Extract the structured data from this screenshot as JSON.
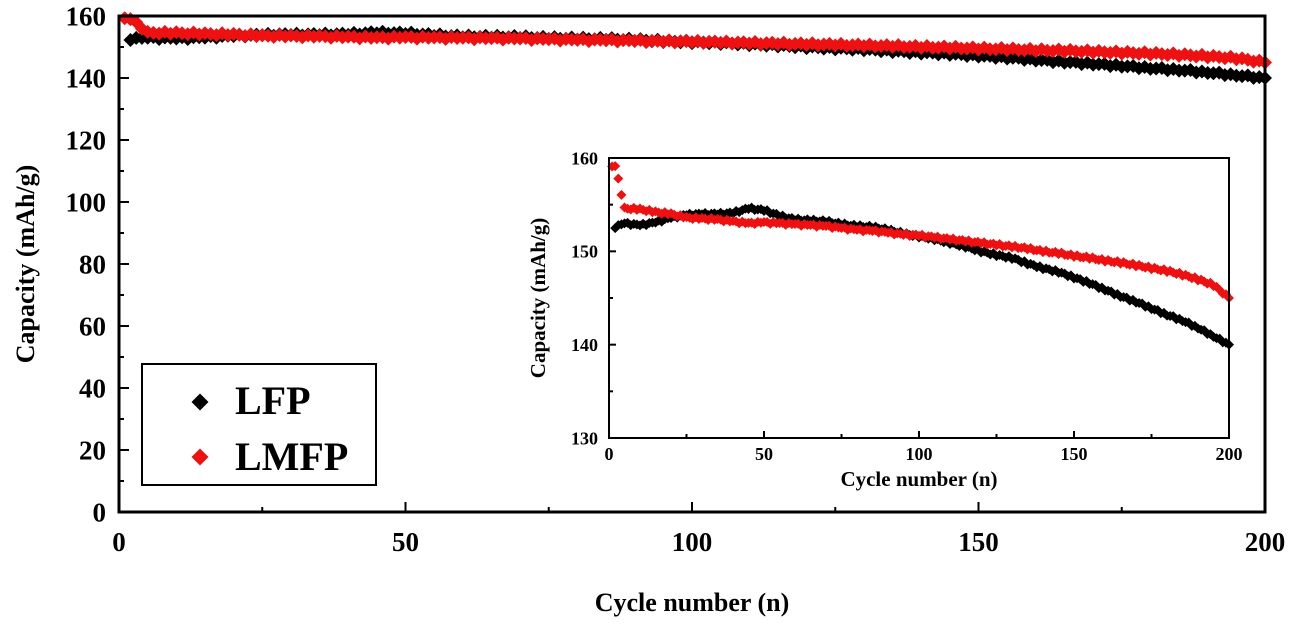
{
  "chart_data": [
    {
      "type": "scatter",
      "xlabel": "Cycle number (n)",
      "ylabel": "Capacity (mAh/g)",
      "xlim": [
        0,
        200
      ],
      "ylim": [
        0,
        160
      ],
      "x_ticks": [
        "0",
        "50",
        "100",
        "150",
        "200"
      ],
      "y_ticks": [
        "0",
        "20",
        "40",
        "60",
        "80",
        "100",
        "120",
        "140",
        "160"
      ],
      "grid": false,
      "legend_position": "bottom-left",
      "series": [
        {
          "name": "LFP",
          "color": "#000000",
          "x": [
            2,
            5,
            10,
            15,
            20,
            25,
            30,
            35,
            40,
            45,
            50,
            55,
            60,
            65,
            70,
            75,
            80,
            85,
            90,
            95,
            100,
            105,
            110,
            115,
            120,
            125,
            130,
            135,
            140,
            145,
            150,
            155,
            160,
            165,
            170,
            175,
            180,
            185,
            190,
            195,
            200
          ],
          "y": [
            152.6,
            153.0,
            152.8,
            153.1,
            153.6,
            153.9,
            154.0,
            154.0,
            154.1,
            154.6,
            154.4,
            153.8,
            153.4,
            153.3,
            153.2,
            152.9,
            152.7,
            152.6,
            152.3,
            151.9,
            151.6,
            151.3,
            150.9,
            150.5,
            150.0,
            149.6,
            149.3,
            148.7,
            148.2,
            147.8,
            147.2,
            146.6,
            145.9,
            145.2,
            144.6,
            143.9,
            143.2,
            142.6,
            141.8,
            140.9,
            140.0
          ]
        },
        {
          "name": "LMFP",
          "color": "#ee1111",
          "x": [
            1,
            2,
            5,
            10,
            15,
            20,
            25,
            30,
            35,
            40,
            45,
            50,
            55,
            60,
            65,
            70,
            75,
            80,
            85,
            90,
            95,
            100,
            105,
            110,
            115,
            120,
            125,
            130,
            135,
            140,
            145,
            150,
            155,
            160,
            165,
            170,
            175,
            180,
            185,
            190,
            195,
            200
          ],
          "y": [
            159.0,
            159.2,
            154.6,
            154.5,
            154.2,
            154.0,
            153.6,
            153.5,
            153.4,
            153.2,
            153.0,
            153.1,
            153.0,
            152.9,
            152.8,
            152.7,
            152.5,
            152.3,
            152.2,
            152.0,
            151.8,
            151.7,
            151.5,
            151.3,
            151.1,
            150.9,
            150.7,
            150.5,
            150.3,
            150.0,
            149.8,
            149.5,
            149.3,
            149.0,
            148.8,
            148.5,
            148.2,
            147.9,
            147.5,
            147.0,
            146.4,
            145.0
          ]
        }
      ]
    },
    {
      "type": "scatter",
      "xlabel": "Cycle number (n)",
      "ylabel": "Capacity (mAh/g)",
      "xlim": [
        0,
        200
      ],
      "ylim": [
        130,
        160
      ],
      "x_ticks": [
        "0",
        "50",
        "100",
        "150",
        "200"
      ],
      "y_ticks": [
        "130",
        "140",
        "150",
        "160"
      ],
      "grid": false,
      "legend_position": "none",
      "series": [
        {
          "name": "LFP",
          "color": "#000000",
          "x": [
            2,
            5,
            10,
            15,
            20,
            25,
            30,
            35,
            40,
            45,
            50,
            55,
            60,
            65,
            70,
            75,
            80,
            85,
            90,
            95,
            100,
            105,
            110,
            115,
            120,
            125,
            130,
            135,
            140,
            145,
            150,
            155,
            160,
            165,
            170,
            175,
            180,
            185,
            190,
            195,
            200
          ],
          "y": [
            152.6,
            153.0,
            152.8,
            153.1,
            153.6,
            153.9,
            154.0,
            154.0,
            154.1,
            154.6,
            154.4,
            153.8,
            153.4,
            153.3,
            153.2,
            152.9,
            152.7,
            152.6,
            152.3,
            151.9,
            151.6,
            151.3,
            150.9,
            150.5,
            150.0,
            149.6,
            149.3,
            148.7,
            148.2,
            147.8,
            147.2,
            146.6,
            145.9,
            145.2,
            144.6,
            143.9,
            143.2,
            142.6,
            141.8,
            140.9,
            140.0
          ]
        },
        {
          "name": "LMFP",
          "color": "#ee1111",
          "x": [
            1,
            2,
            5,
            10,
            15,
            20,
            25,
            30,
            35,
            40,
            45,
            50,
            55,
            60,
            65,
            70,
            75,
            80,
            85,
            90,
            95,
            100,
            105,
            110,
            115,
            120,
            125,
            130,
            135,
            140,
            145,
            150,
            155,
            160,
            165,
            170,
            175,
            180,
            185,
            190,
            195,
            200
          ],
          "y": [
            159.0,
            159.2,
            154.6,
            154.5,
            154.2,
            154.0,
            153.6,
            153.5,
            153.4,
            153.2,
            153.0,
            153.1,
            153.0,
            152.9,
            152.8,
            152.7,
            152.5,
            152.3,
            152.2,
            152.0,
            151.8,
            151.7,
            151.5,
            151.3,
            151.1,
            150.9,
            150.7,
            150.5,
            150.3,
            150.0,
            149.8,
            149.5,
            149.3,
            149.0,
            148.8,
            148.5,
            148.2,
            147.9,
            147.5,
            147.0,
            146.4,
            145.0
          ]
        }
      ]
    }
  ]
}
